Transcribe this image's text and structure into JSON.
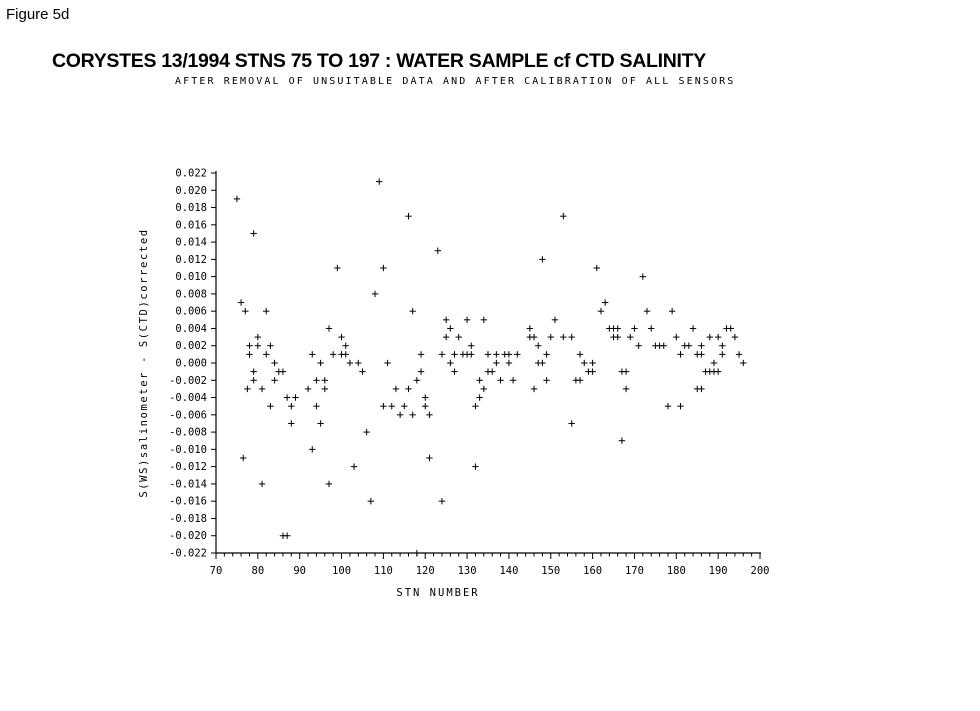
{
  "figure_label": "Figure 5d",
  "chart_data": {
    "type": "scatter",
    "title": "CORYSTES 13/1994   STNS  75  TO  197 :    WATER SAMPLE cf CTD SALINITY",
    "subtitle": "AFTER REMOVAL OF UNSUITABLE DATA AND AFTER CALIBRATION OF ALL SENSORS",
    "xlabel": "STN NUMBER",
    "ylabel": "S(WS)salinometer - S(CTD)corrected",
    "xlim": [
      70,
      200
    ],
    "ylim": [
      -0.022,
      0.022
    ],
    "x_ticks": [
      "70",
      "80",
      "90",
      "100",
      "110",
      "120",
      "130",
      "140",
      "150",
      "160",
      "170",
      "180",
      "190",
      "200"
    ],
    "y_ticks": [
      "0.022",
      "0.020",
      "0.018",
      "0.016",
      "0.014",
      "0.012",
      "0.010",
      "0.008",
      "0.006",
      "0.004",
      "0.002",
      "0.000",
      "-0.002",
      "-0.004",
      "-0.006",
      "-0.008",
      "-0.010",
      "-0.012",
      "-0.014",
      "-0.016",
      "-0.018",
      "-0.020",
      "-0.022"
    ],
    "marker": "+",
    "grid": false,
    "legend": "none",
    "points": [
      [
        75,
        0.019
      ],
      [
        76,
        0.007
      ],
      [
        76.5,
        -0.011
      ],
      [
        77,
        0.006
      ],
      [
        77.5,
        -0.003
      ],
      [
        78,
        0.002
      ],
      [
        78,
        0.001
      ],
      [
        79,
        0.015
      ],
      [
        79,
        -0.001
      ],
      [
        79,
        -0.002
      ],
      [
        80,
        0.002
      ],
      [
        80,
        0.003
      ],
      [
        81,
        -0.003
      ],
      [
        81,
        -0.014
      ],
      [
        82,
        0.006
      ],
      [
        82,
        0.001
      ],
      [
        83,
        0.002
      ],
      [
        83,
        -0.005
      ],
      [
        84,
        0
      ],
      [
        84,
        -0.002
      ],
      [
        85,
        -0.001
      ],
      [
        86,
        -0.001
      ],
      [
        86,
        -0.02
      ],
      [
        87,
        -0.02
      ],
      [
        87,
        -0.004
      ],
      [
        88,
        -0.005
      ],
      [
        88,
        -0.007
      ],
      [
        89,
        -0.004
      ],
      [
        92,
        -0.003
      ],
      [
        93,
        0.001
      ],
      [
        93,
        -0.01
      ],
      [
        94,
        -0.002
      ],
      [
        94,
        -0.005
      ],
      [
        95,
        0
      ],
      [
        95,
        -0.007
      ],
      [
        96,
        -0.002
      ],
      [
        96,
        -0.003
      ],
      [
        97,
        0.004
      ],
      [
        97,
        -0.014
      ],
      [
        98,
        0.001
      ],
      [
        99,
        0.011
      ],
      [
        100,
        0.003
      ],
      [
        100,
        0.001
      ],
      [
        101,
        0.002
      ],
      [
        101,
        0.001
      ],
      [
        102,
        0
      ],
      [
        103,
        -0.012
      ],
      [
        104,
        0
      ],
      [
        105,
        -0.001
      ],
      [
        106,
        -0.008
      ],
      [
        107,
        -0.016
      ],
      [
        108,
        0.008
      ],
      [
        109,
        0.021
      ],
      [
        110,
        0.011
      ],
      [
        110,
        -0.005
      ],
      [
        111,
        0
      ],
      [
        112,
        -0.005
      ],
      [
        113,
        -0.003
      ],
      [
        114,
        -0.006
      ],
      [
        115,
        -0.005
      ],
      [
        116,
        0.017
      ],
      [
        116,
        -0.003
      ],
      [
        117,
        0.006
      ],
      [
        117,
        -0.006
      ],
      [
        118,
        -0.022
      ],
      [
        118,
        -0.002
      ],
      [
        119,
        0.001
      ],
      [
        119,
        -0.001
      ],
      [
        120,
        -0.004
      ],
      [
        120,
        -0.005
      ],
      [
        121,
        -0.006
      ],
      [
        121,
        -0.011
      ],
      [
        123,
        0.013
      ],
      [
        124,
        0.001
      ],
      [
        124,
        -0.016
      ],
      [
        125,
        0.003
      ],
      [
        125,
        0.005
      ],
      [
        126,
        0.004
      ],
      [
        126,
        0
      ],
      [
        127,
        0.001
      ],
      [
        127,
        -0.001
      ],
      [
        128,
        0.003
      ],
      [
        129,
        0.001
      ],
      [
        130,
        0.001
      ],
      [
        130,
        0.005
      ],
      [
        131,
        0.001
      ],
      [
        131,
        0.002
      ],
      [
        132,
        -0.005
      ],
      [
        132,
        -0.012
      ],
      [
        133,
        -0.002
      ],
      [
        133,
        -0.004
      ],
      [
        134,
        0.005
      ],
      [
        134,
        -0.003
      ],
      [
        135,
        0.001
      ],
      [
        135,
        -0.001
      ],
      [
        136,
        -0.001
      ],
      [
        137,
        0.001
      ],
      [
        137,
        0
      ],
      [
        138,
        -0.002
      ],
      [
        139,
        0.001
      ],
      [
        140,
        0.001
      ],
      [
        140,
        0
      ],
      [
        141,
        -0.002
      ],
      [
        142,
        0.001
      ],
      [
        145,
        0.003
      ],
      [
        145,
        0.004
      ],
      [
        146,
        0.003
      ],
      [
        146,
        -0.003
      ],
      [
        147,
        0.002
      ],
      [
        147,
        0
      ],
      [
        148,
        0
      ],
      [
        148,
        0.012
      ],
      [
        149,
        0.001
      ],
      [
        149,
        -0.002
      ],
      [
        150,
        0.003
      ],
      [
        151,
        0.005
      ],
      [
        153,
        0.017
      ],
      [
        153,
        0.003
      ],
      [
        155,
        0.003
      ],
      [
        155,
        -0.007
      ],
      [
        156,
        -0.002
      ],
      [
        157,
        0.001
      ],
      [
        157,
        -0.002
      ],
      [
        158,
        0
      ],
      [
        159,
        -0.001
      ],
      [
        160,
        0
      ],
      [
        160,
        -0.001
      ],
      [
        161,
        0.011
      ],
      [
        162,
        0.006
      ],
      [
        163,
        0.007
      ],
      [
        164,
        0.004
      ],
      [
        165,
        0.004
      ],
      [
        165,
        0.003
      ],
      [
        166,
        0.003
      ],
      [
        166,
        0.004
      ],
      [
        167,
        -0.001
      ],
      [
        167,
        -0.009
      ],
      [
        168,
        -0.001
      ],
      [
        168,
        -0.003
      ],
      [
        169,
        0.003
      ],
      [
        170,
        0.004
      ],
      [
        171,
        0.002
      ],
      [
        172,
        0.01
      ],
      [
        173,
        0.006
      ],
      [
        174,
        0.004
      ],
      [
        175,
        0.002
      ],
      [
        176,
        0.002
      ],
      [
        177,
        0.002
      ],
      [
        178,
        -0.005
      ],
      [
        179,
        0.006
      ],
      [
        180,
        0.003
      ],
      [
        181,
        0.001
      ],
      [
        181,
        -0.005
      ],
      [
        182,
        0.002
      ],
      [
        183,
        0.002
      ],
      [
        184,
        0.004
      ],
      [
        185,
        0.001
      ],
      [
        185,
        -0.003
      ],
      [
        186,
        0.002
      ],
      [
        186,
        0.001
      ],
      [
        186,
        -0.003
      ],
      [
        187,
        -0.001
      ],
      [
        188,
        0.003
      ],
      [
        188,
        -0.001
      ],
      [
        189,
        0
      ],
      [
        189,
        -0.001
      ],
      [
        190,
        0.003
      ],
      [
        190,
        -0.001
      ],
      [
        191,
        0.002
      ],
      [
        191,
        0.001
      ],
      [
        192,
        0.004
      ],
      [
        193,
        0.004
      ],
      [
        194,
        0.003
      ],
      [
        195,
        0.001
      ],
      [
        196,
        0
      ]
    ]
  }
}
